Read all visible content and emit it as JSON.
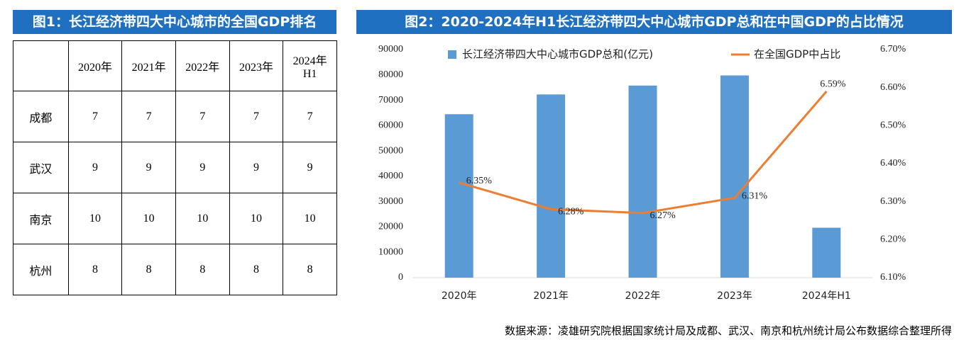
{
  "table": {
    "title": "图1：长江经济带四大中心城市的全国GDP排名",
    "columns": [
      "2020年",
      "2021年",
      "2022年",
      "2023年",
      "2024年H1"
    ],
    "rows": [
      {
        "city": "成都",
        "ranks": [
          7,
          7,
          7,
          7,
          7
        ]
      },
      {
        "city": "武汉",
        "ranks": [
          9,
          9,
          9,
          9,
          9
        ]
      },
      {
        "city": "南京",
        "ranks": [
          10,
          10,
          10,
          10,
          10
        ]
      },
      {
        "city": "杭州",
        "ranks": [
          8,
          8,
          8,
          8,
          8
        ]
      }
    ]
  },
  "chart_data": {
    "type": "bar-line",
    "title": "图2：2020-2024年H1长江经济带四大中心城市GDP总和在中国GDP的占比情况",
    "categories": [
      "2020年",
      "2021年",
      "2022年",
      "2023年",
      "2024年H1"
    ],
    "series": [
      {
        "name": "长江经济带四大中心城市GDP总和(亿元)",
        "type": "bar",
        "color": "#5b9bd5",
        "values": [
          64500,
          72300,
          75800,
          79800,
          19700
        ]
      },
      {
        "name": "在全国GDP中占比",
        "type": "line",
        "axis": "y2",
        "color": "#ed7d31",
        "values": [
          6.35,
          6.28,
          6.27,
          6.31,
          6.59
        ],
        "value_labels": [
          "6.35%",
          "6.28%",
          "6.27%",
          "6.31%",
          "6.59%"
        ]
      }
    ],
    "ylim": [
      0,
      90000
    ],
    "yticks": [
      0,
      10000,
      20000,
      30000,
      40000,
      50000,
      60000,
      70000,
      80000,
      90000
    ],
    "y2lim": [
      6.1,
      6.7
    ],
    "y2ticks": [
      {
        "value": 6.1,
        "label": "6.10%"
      },
      {
        "value": 6.2,
        "label": "6.20%"
      },
      {
        "value": 6.3,
        "label": "6.30%"
      },
      {
        "value": 6.4,
        "label": "6.40%"
      },
      {
        "value": 6.5,
        "label": "6.50%"
      },
      {
        "value": 6.6,
        "label": "6.60%"
      },
      {
        "value": 6.7,
        "label": "6.70%"
      }
    ],
    "legend": "top",
    "grid": false
  },
  "source": "数据来源：凌雄研究院根据国家统计局及成都、武汉、南京和杭州统计局公布数据综合整理所得"
}
